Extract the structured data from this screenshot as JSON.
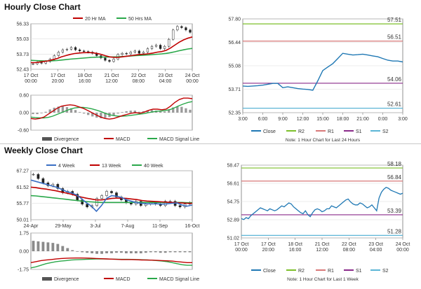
{
  "sections": {
    "hourly_title": "Hourly Close Chart",
    "weekly_title": "Weekly Close Chart"
  },
  "chart_data": [
    {
      "id": "hourly-price",
      "type": "candlestick",
      "legend": [
        {
          "name": "20 Hr MA",
          "color": "#c00000"
        },
        {
          "name": "50 Hrs MA",
          "color": "#2aa84a"
        }
      ],
      "y_ticks": [
        "56.33",
        "55.03",
        "53.73",
        "52.43"
      ],
      "ylim": [
        52.43,
        56.33
      ],
      "x_ticks": [
        [
          "17 Oct",
          "00:00"
        ],
        [
          "17 Oct",
          "20:00"
        ],
        [
          "18 Oct",
          "16:00"
        ],
        [
          "21 Oct",
          "12:00"
        ],
        [
          "22 Oct",
          "08:00"
        ],
        [
          "23 Oct",
          "04:00"
        ],
        [
          "24 Oct",
          "00:00"
        ]
      ],
      "close": [
        52.9,
        53.0,
        52.95,
        53.1,
        53.3,
        53.6,
        53.9,
        54.1,
        54.15,
        54.3,
        54.1,
        54.0,
        53.95,
        53.9,
        53.8,
        53.6,
        53.4,
        53.2,
        53.1,
        53.3,
        53.7,
        53.8,
        53.75,
        53.9,
        54.0,
        53.8,
        53.9,
        54.2,
        54.4,
        54.5,
        54.2,
        54.4,
        55.0,
        55.8,
        56.1,
        56.0,
        55.8,
        55.6
      ],
      "ma20": [
        53.0,
        53.0,
        53.05,
        53.1,
        53.15,
        53.25,
        53.35,
        53.5,
        53.6,
        53.7,
        53.78,
        53.82,
        53.85,
        53.86,
        53.85,
        53.8,
        53.72,
        53.6,
        53.5,
        53.45,
        53.45,
        53.5,
        53.55,
        53.6,
        53.65,
        53.7,
        53.72,
        53.76,
        53.82,
        53.9,
        53.95,
        54.05,
        54.25,
        54.5,
        54.75,
        54.95,
        55.1,
        55.2
      ],
      "ma50": [
        53.2,
        53.18,
        53.16,
        53.15,
        53.15,
        53.16,
        53.18,
        53.22,
        53.26,
        53.3,
        53.33,
        53.36,
        53.39,
        53.42,
        53.45,
        53.47,
        53.48,
        53.48,
        53.48,
        53.49,
        53.5,
        53.52,
        53.54,
        53.57,
        53.6,
        53.62,
        53.64,
        53.66,
        53.69,
        53.72,
        53.75,
        53.79,
        53.85,
        53.93,
        54.02,
        54.1,
        54.17,
        54.22
      ]
    },
    {
      "id": "hourly-macd",
      "type": "line",
      "y_ticks": [
        "0.60",
        "0.00",
        "-0.60"
      ],
      "ylim": [
        -0.6,
        0.6
      ],
      "legend": [
        {
          "name": "Divergence",
          "color": "#555555"
        },
        {
          "name": "MACD",
          "color": "#c00000"
        },
        {
          "name": "MACD Signal Line",
          "color": "#2aa84a"
        }
      ],
      "macd": [
        -0.2,
        -0.22,
        -0.2,
        -0.15,
        -0.05,
        0.05,
        0.15,
        0.22,
        0.25,
        0.27,
        0.25,
        0.2,
        0.15,
        0.08,
        0.0,
        -0.08,
        -0.15,
        -0.2,
        -0.22,
        -0.2,
        -0.15,
        -0.1,
        -0.06,
        -0.02,
        0.0,
        -0.02,
        0.02,
        0.08,
        0.12,
        0.12,
        0.1,
        0.12,
        0.22,
        0.35,
        0.45,
        0.5,
        0.5,
        0.48
      ],
      "signal": [
        -0.15,
        -0.17,
        -0.18,
        -0.18,
        -0.16,
        -0.12,
        -0.06,
        0.0,
        0.06,
        0.12,
        0.16,
        0.18,
        0.18,
        0.16,
        0.13,
        0.09,
        0.04,
        -0.02,
        -0.07,
        -0.1,
        -0.12,
        -0.12,
        -0.11,
        -0.09,
        -0.07,
        -0.05,
        -0.03,
        0.0,
        0.03,
        0.05,
        0.06,
        0.08,
        0.11,
        0.17,
        0.24,
        0.3,
        0.35,
        0.38
      ]
    },
    {
      "id": "hourly-24h",
      "type": "line",
      "y_ticks": [
        "57.80",
        "56.44",
        "55.08",
        "53.71",
        "52.35"
      ],
      "ylim": [
        52.35,
        57.8
      ],
      "x_ticks": [
        "3:00",
        "6:00",
        "9:00",
        "12:00",
        "15:00",
        "18:00",
        "21:00",
        "0:00",
        "3:00"
      ],
      "close": [
        53.9,
        53.88,
        53.9,
        53.92,
        53.95,
        54.0,
        54.05,
        54.05,
        53.8,
        53.85,
        53.8,
        53.75,
        53.72,
        53.7,
        53.65,
        54.2,
        54.8,
        55.0,
        55.2,
        55.5,
        55.8,
        55.75,
        55.7,
        55.72,
        55.75,
        55.7,
        55.65,
        55.6,
        55.5,
        55.4,
        55.35,
        55.35,
        55.3
      ],
      "levels": [
        {
          "name": "R2",
          "value": 57.51,
          "label": "57.51",
          "color": "#7cbf2a"
        },
        {
          "name": "R1",
          "value": 56.51,
          "label": "56.51",
          "color": "#d87878"
        },
        {
          "name": "S1",
          "value": 54.06,
          "label": "54.06",
          "color": "#8a2a8a"
        },
        {
          "name": "S2",
          "value": 52.61,
          "label": "52.61",
          "color": "#5bb5d6"
        }
      ],
      "legend": [
        {
          "name": "Close",
          "color": "#1f78b4"
        },
        {
          "name": "R2",
          "color": "#7cbf2a"
        },
        {
          "name": "R1",
          "color": "#d87878"
        },
        {
          "name": "S1",
          "color": "#8a2a8a"
        },
        {
          "name": "S2",
          "color": "#5bb5d6"
        }
      ],
      "note": "Note: 1 Hour Chart for Last 24 Hours"
    },
    {
      "id": "weekly-price",
      "type": "candlestick",
      "legend": [
        {
          "name": "4 Week",
          "color": "#3a6fc4"
        },
        {
          "name": "13 Week",
          "color": "#c00000"
        },
        {
          "name": "40 Week",
          "color": "#2aa84a"
        }
      ],
      "y_ticks": [
        "67.27",
        "61.52",
        "55.77",
        "50.01"
      ],
      "ylim": [
        50.01,
        67.27
      ],
      "x_ticks": [
        "24-Apr",
        "29-May",
        "3-Jul",
        "7-Aug",
        "11-Sep",
        "16-Oct"
      ],
      "close": [
        66.0,
        64.5,
        63.0,
        62.0,
        62.5,
        61.0,
        59.5,
        60.0,
        59.0,
        57.0,
        55.5,
        54.5,
        55.0,
        57.5,
        58.5,
        60.0,
        59.5,
        58.0,
        57.0,
        56.0,
        55.5,
        56.5,
        55.0,
        55.5,
        56.0,
        55.5,
        55.0,
        56.5,
        56.5,
        55.0,
        54.5,
        55.5,
        56.0
      ],
      "ma4": [
        64.0,
        63.5,
        63.0,
        62.5,
        62.0,
        61.5,
        60.8,
        60.0,
        59.5,
        58.8,
        57.5,
        56.0,
        54.8,
        53.0,
        55.0,
        57.5,
        58.5,
        58.3,
        57.8,
        57.0,
        56.5,
        56.0,
        55.8,
        55.6,
        55.6,
        55.6,
        55.5,
        55.6,
        55.8,
        55.9,
        55.2,
        54.8,
        55.2
      ],
      "ma13": [
        61.5,
        61.3,
        61.0,
        60.8,
        60.5,
        60.2,
        59.8,
        59.4,
        59.0,
        58.5,
        58.0,
        57.6,
        57.3,
        57.0,
        57.0,
        57.2,
        57.5,
        57.6,
        57.6,
        57.5,
        57.3,
        57.1,
        56.8,
        56.6,
        56.5,
        56.4,
        56.3,
        56.2,
        56.1,
        56.0,
        55.9,
        55.8,
        55.8
      ],
      "ma40": [
        58.5,
        58.4,
        58.2,
        58.0,
        57.8,
        57.6,
        57.4,
        57.2,
        57.0,
        56.8,
        56.6,
        56.4,
        56.3,
        56.2,
        56.1,
        56.1,
        56.1,
        56.1,
        56.1,
        56.1,
        56.1,
        56.1,
        56.1,
        56.1,
        56.1,
        56.1,
        56.1,
        56.1,
        56.1,
        56.1,
        56.1,
        56.0,
        56.0
      ]
    },
    {
      "id": "weekly-macd",
      "type": "line",
      "y_ticks": [
        "1.75",
        "0.00",
        "-1.75"
      ],
      "ylim": [
        -1.75,
        1.75
      ],
      "legend": [
        {
          "name": "Divergence",
          "color": "#555555"
        },
        {
          "name": "MACD",
          "color": "#c00000"
        },
        {
          "name": "MACD Signal Line",
          "color": "#2aa84a"
        }
      ],
      "divergence": [
        1.0,
        0.95,
        0.9,
        0.85,
        0.8,
        0.7,
        0.5,
        0.3,
        0.1,
        -0.05,
        -0.1,
        -0.15,
        -0.2,
        -0.25,
        -0.25,
        -0.2,
        -0.2,
        -0.15,
        -0.15,
        -0.2,
        -0.2,
        -0.2,
        -0.2,
        -0.15,
        -0.1,
        -0.1,
        -0.15,
        -0.15,
        -0.1,
        -0.1,
        -0.1,
        -0.1,
        -0.1
      ],
      "macd": [
        -1.1,
        -1.0,
        -0.9,
        -0.85,
        -0.8,
        -0.75,
        -0.7,
        -0.68,
        -0.66,
        -0.65,
        -0.65,
        -0.66,
        -0.68,
        -0.7,
        -0.72,
        -0.74,
        -0.76,
        -0.78,
        -0.8,
        -0.8,
        -0.8,
        -0.82,
        -0.84,
        -0.85,
        -0.86,
        -0.88,
        -0.9,
        -0.92,
        -0.95,
        -1.0,
        -1.05,
        -1.1,
        -1.1
      ],
      "signal": [
        -1.6,
        -1.5,
        -1.35,
        -1.2,
        -1.1,
        -1.0,
        -0.95,
        -0.9,
        -0.85,
        -0.82,
        -0.8,
        -0.78,
        -0.76,
        -0.75,
        -0.75,
        -0.75,
        -0.76,
        -0.77,
        -0.78,
        -0.78,
        -0.79,
        -0.8,
        -0.82,
        -0.84,
        -0.86,
        -0.9,
        -0.95,
        -1.0,
        -1.1,
        -1.2,
        -1.3,
        -1.35,
        -1.35
      ]
    },
    {
      "id": "weekly-daily",
      "type": "line",
      "y_ticks": [
        "58.47",
        "56.61",
        "54.75",
        "52.89",
        "51.02"
      ],
      "ylim": [
        51.02,
        58.47
      ],
      "x_ticks": [
        [
          "17 Oct",
          "00:00"
        ],
        [
          "17 Oct",
          "20:00"
        ],
        [
          "18 Oct",
          "16:00"
        ],
        [
          "21 Oct",
          "12:00"
        ],
        [
          "22 Oct",
          "08:00"
        ],
        [
          "23 Oct",
          "04:00"
        ],
        [
          "24 Oct",
          "00:00"
        ]
      ],
      "close": [
        53.0,
        52.9,
        53.1,
        53.0,
        53.3,
        53.5,
        53.7,
        53.9,
        54.1,
        54.0,
        53.9,
        53.8,
        54.0,
        53.9,
        53.8,
        53.9,
        54.1,
        54.3,
        54.2,
        54.4,
        54.6,
        54.5,
        54.2,
        54.0,
        53.8,
        53.6,
        53.5,
        53.8,
        53.4,
        53.2,
        53.6,
        53.9,
        54.0,
        53.9,
        53.7,
        53.8,
        54.0,
        54.0,
        54.3,
        54.2,
        54.1,
        54.3,
        54.5,
        54.7,
        54.9,
        55.0,
        54.7,
        54.5,
        54.4,
        54.4,
        54.6,
        54.5,
        54.3,
        54.1,
        54.2,
        54.4,
        54.1,
        53.8,
        55.1,
        55.7,
        56.0,
        56.2,
        56.1,
        55.9,
        55.8,
        55.7,
        55.6,
        55.5,
        55.6
      ],
      "levels": [
        {
          "name": "R2",
          "value": 58.18,
          "label": "58.18",
          "color": "#7cbf2a"
        },
        {
          "name": "R1",
          "value": 56.84,
          "label": "56.84",
          "color": "#d87878"
        },
        {
          "name": "S1",
          "value": 53.39,
          "label": "53.39",
          "color": "#8a2a8a"
        },
        {
          "name": "S2",
          "value": 51.28,
          "label": "51.28",
          "color": "#5bb5d6"
        }
      ],
      "legend": [
        {
          "name": "Close",
          "color": "#1f78b4"
        },
        {
          "name": "R2",
          "color": "#7cbf2a"
        },
        {
          "name": "R1",
          "color": "#d87878"
        },
        {
          "name": "S1",
          "color": "#8a2a8a"
        },
        {
          "name": "S2",
          "color": "#5bb5d6"
        }
      ],
      "note": "Note: 1 Hour Chart for Last 1 Week"
    }
  ]
}
